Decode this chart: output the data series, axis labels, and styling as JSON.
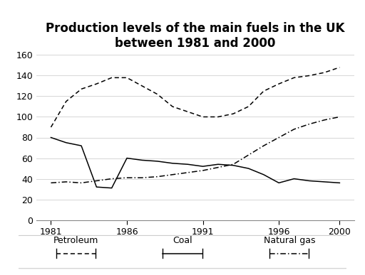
{
  "title": "Production levels of the main fuels in the UK\nbetween 1981 and 2000",
  "years": [
    1981,
    1982,
    1983,
    1984,
    1985,
    1986,
    1987,
    1988,
    1989,
    1990,
    1991,
    1992,
    1993,
    1994,
    1995,
    1996,
    1997,
    1998,
    1999,
    2000
  ],
  "coal": [
    80,
    75,
    72,
    32,
    31,
    60,
    58,
    57,
    55,
    54,
    52,
    54,
    53,
    50,
    44,
    36,
    40,
    38,
    37,
    36
  ],
  "petroleum": [
    90,
    115,
    127,
    132,
    138,
    138,
    130,
    122,
    110,
    105,
    100,
    100,
    103,
    110,
    125,
    132,
    138,
    140,
    143,
    148
  ],
  "natural_gas": [
    36,
    37,
    36,
    38,
    40,
    41,
    41,
    42,
    44,
    46,
    48,
    51,
    54,
    63,
    72,
    80,
    88,
    93,
    97,
    100
  ],
  "ylim": [
    0,
    160
  ],
  "yticks": [
    0,
    20,
    40,
    60,
    80,
    100,
    120,
    140,
    160
  ],
  "xticks": [
    1981,
    1986,
    1991,
    1996,
    2000
  ],
  "color": "#000000",
  "background_color": "#ffffff",
  "title_fontsize": 12,
  "axis_fontsize": 9,
  "legend_fontsize": 9
}
